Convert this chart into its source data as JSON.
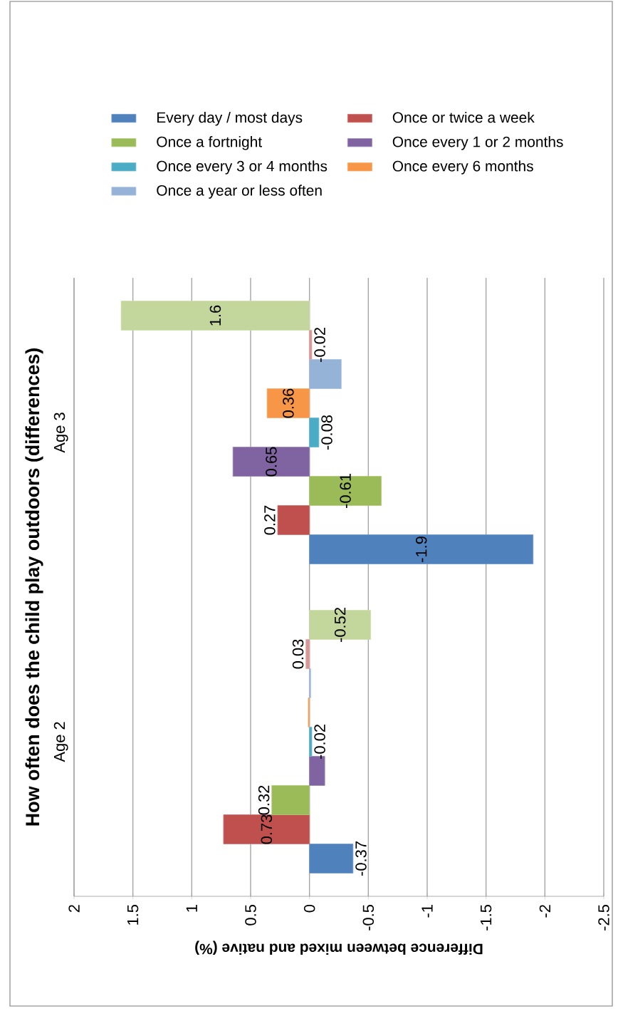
{
  "chart_data": {
    "type": "bar",
    "title": "How often does the child play outdoors (differences)",
    "xlabel": "Difference between mixed and native (%)",
    "categories": [
      "Age 3",
      "Age 2"
    ],
    "orientation": "horizontal",
    "series": [
      {
        "name": "Every day / most days",
        "color": "#4f81bd",
        "values": [
          -1.9,
          -0.37
        ],
        "value_labels": [
          "-1.9",
          "-0.37"
        ]
      },
      {
        "name": "Once or twice a week",
        "color": "#c0504d",
        "values": [
          0.27,
          0.73
        ],
        "value_labels": [
          "0.27",
          "0.73"
        ]
      },
      {
        "name": "Once a fortnight",
        "color": "#9bbb59",
        "values": [
          -0.61,
          0.32
        ],
        "value_labels": [
          "-0.61",
          "0.32"
        ]
      },
      {
        "name": "Once every 1 or 2 months",
        "color": "#8064a2",
        "values": [
          0.65,
          -0.13
        ],
        "value_labels": [
          "0.65",
          null
        ]
      },
      {
        "name": "Once every 3 or 4 months",
        "color": "#4bacc6",
        "values": [
          -0.08,
          -0.02
        ],
        "value_labels": [
          "-0.08",
          "-0.02"
        ]
      },
      {
        "name": "Once every 6 months",
        "color": "#f79646",
        "values": [
          0.36,
          0.01
        ],
        "value_labels": [
          "0.36",
          null
        ]
      },
      {
        "name": "Once a year or less often",
        "color": "#95b3d7",
        "values": [
          -0.27,
          -0.01
        ],
        "value_labels": [
          null,
          null
        ]
      },
      {
        "color": "#d99694",
        "values": [
          -0.02,
          0.03
        ],
        "value_labels": [
          "-0.02",
          "0.03"
        ]
      },
      {
        "color": "#c3d69b",
        "values": [
          1.6,
          -0.52
        ],
        "value_labels": [
          "1.6",
          "-0.52"
        ]
      }
    ],
    "xlim": [
      2,
      -2.5
    ],
    "xticks": [
      -2.5,
      -2,
      -1.5,
      -1,
      -0.5,
      0,
      0.5,
      1,
      1.5,
      2
    ],
    "grid": "x",
    "legend": "top"
  }
}
